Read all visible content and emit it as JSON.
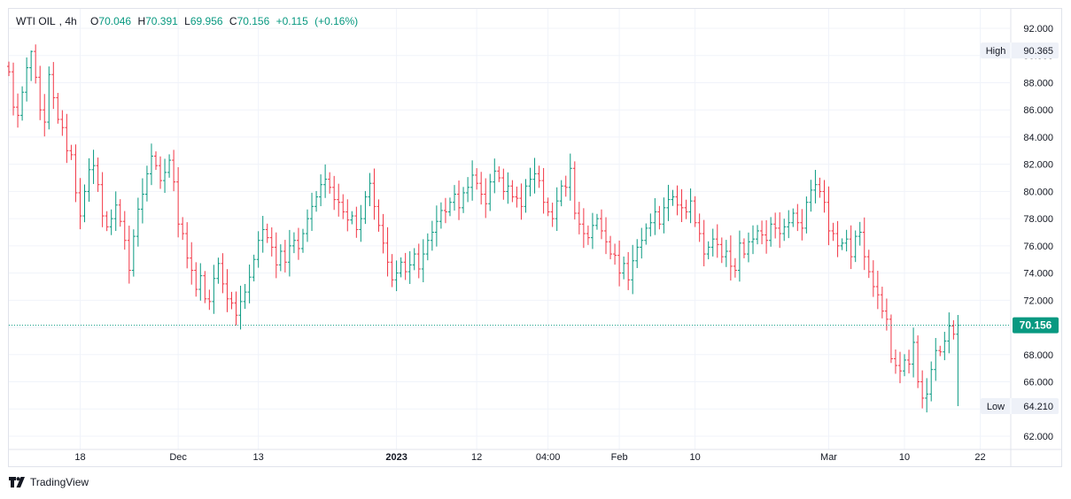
{
  "chart_data": {
    "type": "ohlc",
    "symbol": "WTI OIL",
    "interval": "4h",
    "legend": {
      "open": "70.046",
      "high": "70.391",
      "low": "69.956",
      "close": "70.156",
      "change": "+0.115",
      "change_pct": "(+0.16%)"
    },
    "ylim": [
      61.2,
      93.2
    ],
    "yticks": [
      "62.000",
      "64.000",
      "66.000",
      "68.000",
      "70.000",
      "72.000",
      "74.000",
      "76.000",
      "78.000",
      "80.000",
      "82.000",
      "84.000",
      "86.000",
      "88.000",
      "90.000",
      "92.000"
    ],
    "xtick_labels": [
      {
        "label": "18",
        "index": 16,
        "bold": false
      },
      {
        "label": "Dec",
        "index": 38,
        "bold": false
      },
      {
        "label": "13",
        "index": 56,
        "bold": false
      },
      {
        "label": "2023",
        "index": 87,
        "bold": true
      },
      {
        "label": "12",
        "index": 105,
        "bold": false
      },
      {
        "label": "04:00",
        "index": 121,
        "bold": false
      },
      {
        "label": "Feb",
        "index": 137,
        "bold": false
      },
      {
        "label": "10",
        "index": 154,
        "bold": false
      },
      {
        "label": "Mar",
        "index": 184,
        "bold": false
      },
      {
        "label": "10",
        "index": 201,
        "bold": false
      },
      {
        "label": "22",
        "index": 218,
        "bold": false
      }
    ],
    "current_price": 70.156,
    "current_price_label": "70.156",
    "high": {
      "label": "High",
      "value": "90.365",
      "y": 90.365
    },
    "low": {
      "label": "Low",
      "value": "64.210",
      "y": 64.21
    },
    "colors": {
      "up": "#089981",
      "down": "#f23645",
      "grid": "#f0f3fa",
      "axis_text": "#131722"
    },
    "closes": [
      88.8,
      86.2,
      85.6,
      87.3,
      89.1,
      90.3,
      88.4,
      86.0,
      85.1,
      88.6,
      86.9,
      85.3,
      84.7,
      83.0,
      82.7,
      79.9,
      78.2,
      80.0,
      81.6,
      81.9,
      80.5,
      78.2,
      77.4,
      78.0,
      79.0,
      77.8,
      76.4,
      74.2,
      76.7,
      78.7,
      79.8,
      81.3,
      82.6,
      81.9,
      80.8,
      81.4,
      82.3,
      80.7,
      77.6,
      76.9,
      75.1,
      74.2,
      72.8,
      73.8,
      72.1,
      71.9,
      73.6,
      74.7,
      73.2,
      72.1,
      71.8,
      70.9,
      71.9,
      72.6,
      73.7,
      75.0,
      76.4,
      77.2,
      76.6,
      75.9,
      74.6,
      75.6,
      74.8,
      76.0,
      76.4,
      75.8,
      76.9,
      78.0,
      78.9,
      79.6,
      80.5,
      80.9,
      80.3,
      79.4,
      79.2,
      78.5,
      77.9,
      78.2,
      77.2,
      78.0,
      79.6,
      80.6,
      78.9,
      77.5,
      76.2,
      74.8,
      73.5,
      74.0,
      74.8,
      74.1,
      74.6,
      75.4,
      74.3,
      75.4,
      76.4,
      77.0,
      77.8,
      78.6,
      78.5,
      79.2,
      79.8,
      78.8,
      79.9,
      80.3,
      81.2,
      80.6,
      79.8,
      79.1,
      80.7,
      81.5,
      81.0,
      80.0,
      80.4,
      79.6,
      79.5,
      78.9,
      80.4,
      80.9,
      81.3,
      80.8,
      79.2,
      78.5,
      78.0,
      79.3,
      80.4,
      80.3,
      81.7,
      78.4,
      77.6,
      76.9,
      76.6,
      77.5,
      78.0,
      77.1,
      76.3,
      75.4,
      75.3,
      74.0,
      74.7,
      73.5,
      74.9,
      75.9,
      76.4,
      77.3,
      77.7,
      78.5,
      77.6,
      78.8,
      79.4,
      79.6,
      79.0,
      78.8,
      78.5,
      79.3,
      77.7,
      76.9,
      75.4,
      75.9,
      76.5,
      76.1,
      75.2,
      75.6,
      74.5,
      74.2,
      76.2,
      75.4,
      76.3,
      76.5,
      77.1,
      76.8,
      76.4,
      77.6,
      77.3,
      76.9,
      77.4,
      77.7,
      78.4,
      77.7,
      77.3,
      79.2,
      80.1,
      80.5,
      80.0,
      79.2,
      77.1,
      76.9,
      76.0,
      76.2,
      76.5,
      75.2,
      76.7,
      77.0,
      75.2,
      74.1,
      73.0,
      72.4,
      71.2,
      70.6,
      67.7,
      67.2,
      66.8,
      67.6,
      67.3,
      68.9,
      66.0,
      64.8,
      65.1,
      66.9,
      68.3,
      68.2,
      69.0,
      70.1,
      69.5,
      70.156
    ]
  },
  "branding": {
    "name": "TradingView"
  }
}
